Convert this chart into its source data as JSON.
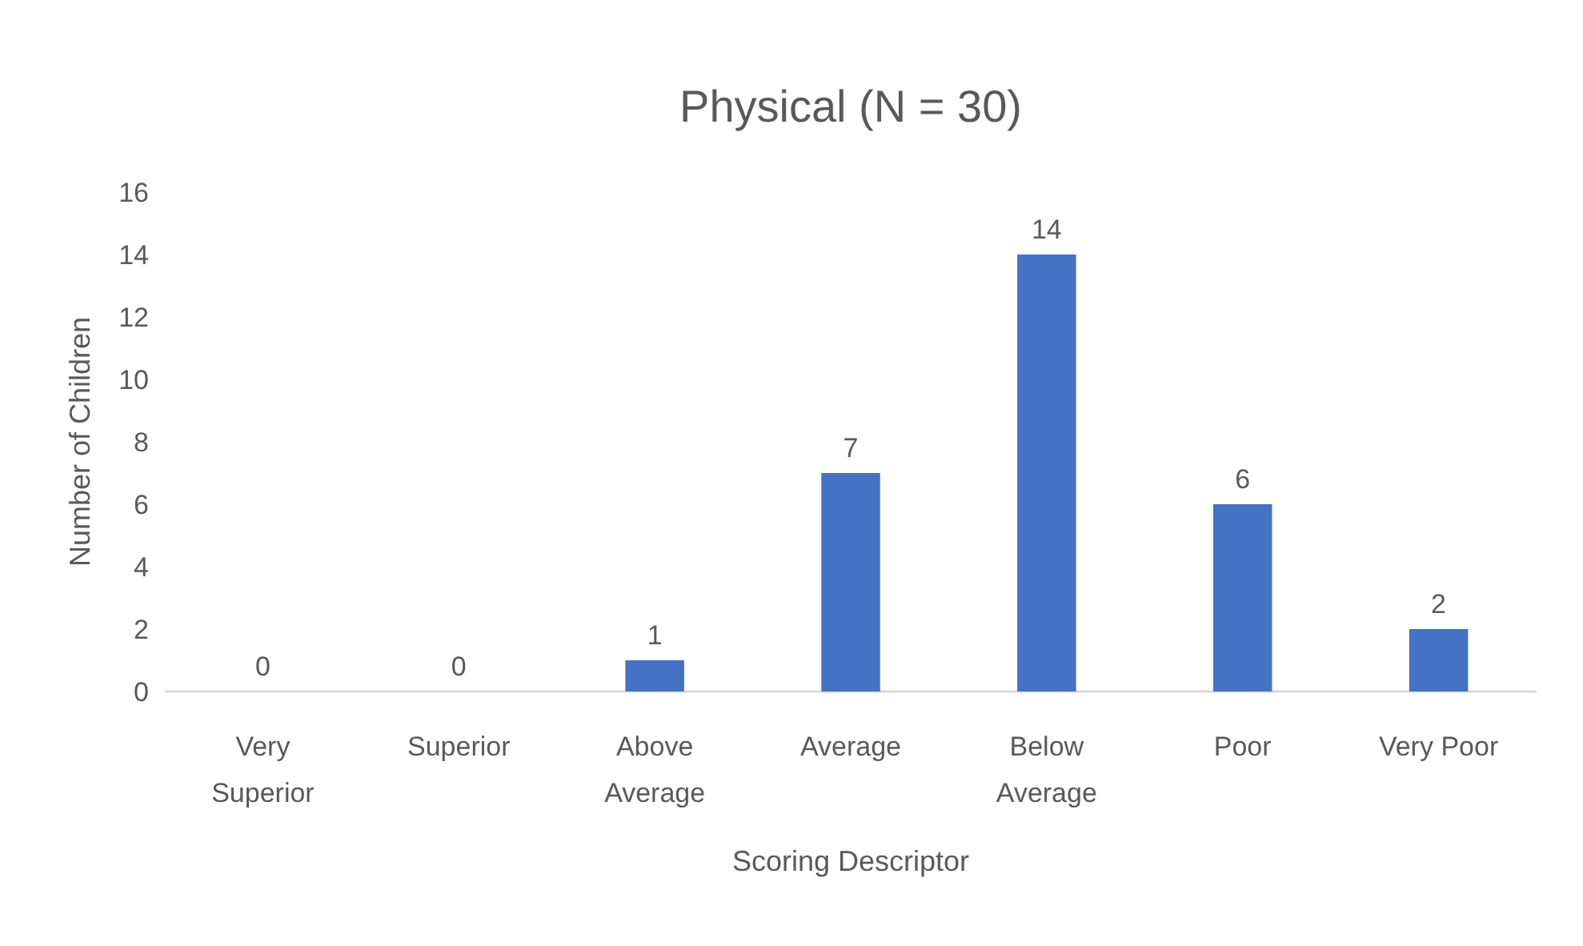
{
  "chart_data": {
    "type": "bar",
    "title": "Physical (N = 30)",
    "xlabel": "Scoring Descriptor",
    "ylabel": "Number of Children",
    "categories": [
      "Very Superior",
      "Superior",
      "Above Average",
      "Average",
      "Below Average",
      "Poor",
      "Very Poor"
    ],
    "values": [
      0,
      0,
      1,
      7,
      14,
      6,
      2
    ],
    "color": "#4472c4",
    "ylim": [
      0,
      16
    ],
    "yticks": [
      0,
      2,
      4,
      6,
      8,
      10,
      12,
      14,
      16
    ],
    "grid": false,
    "data_labels": true
  }
}
